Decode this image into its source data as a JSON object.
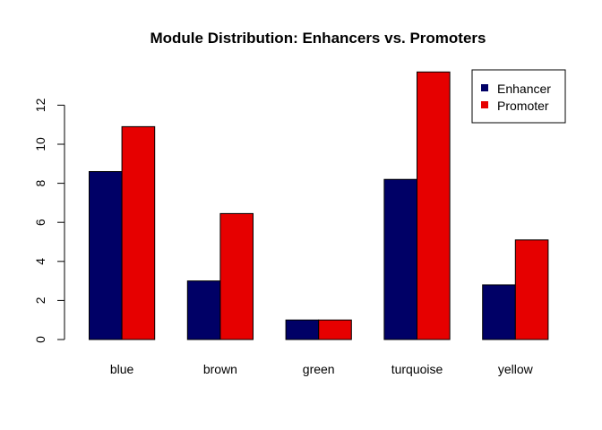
{
  "chart_data": {
    "type": "bar",
    "title": "Module Distribution: Enhancers vs. Promoters",
    "xlabel": "",
    "ylabel": "",
    "categories": [
      "blue",
      "brown",
      "green",
      "turquoise",
      "yellow"
    ],
    "series": [
      {
        "name": "Enhancer",
        "color": "#000066",
        "values": [
          8.6,
          3.0,
          1.0,
          8.2,
          2.8
        ]
      },
      {
        "name": "Promoter",
        "color": "#e60000",
        "values": [
          10.9,
          6.45,
          1.0,
          13.7,
          5.1
        ]
      }
    ],
    "ylim": [
      0,
      14
    ],
    "yticks": [
      0,
      2,
      4,
      6,
      8,
      10,
      12
    ],
    "grid": false,
    "legend_position": "top-right"
  }
}
